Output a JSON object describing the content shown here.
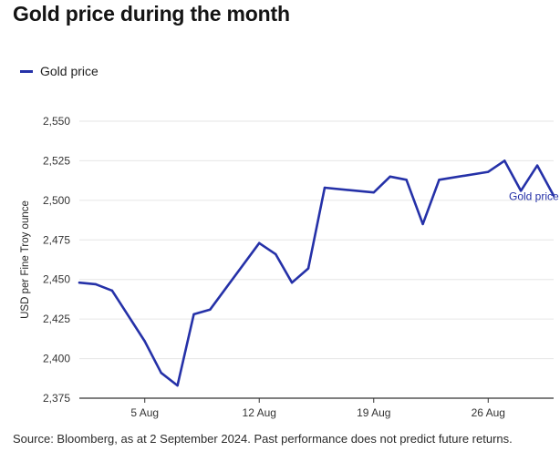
{
  "title": "Gold price during the month",
  "source": "Source: Bloomberg, as at 2 September 2024. Past performance does not predict future returns.",
  "colors": {
    "series": "#2531a8",
    "grid": "#e6e6e6",
    "axis": "#333333"
  },
  "chart_data": {
    "type": "line",
    "title": "Gold price during the month",
    "ylabel": "USD per Fine Troy ounce",
    "xlabel": "",
    "ylim": [
      2375,
      2550
    ],
    "yticks": [
      2375,
      2400,
      2425,
      2450,
      2475,
      2500,
      2525,
      2550
    ],
    "ytick_labels": [
      "2,375",
      "2,400",
      "2,425",
      "2,450",
      "2,475",
      "2,500",
      "2,525",
      "2,550"
    ],
    "xlim": [
      "2024-08-01",
      "2024-08-30"
    ],
    "xticks": [
      "2024-08-05",
      "2024-08-12",
      "2024-08-19",
      "2024-08-26"
    ],
    "xtick_labels": [
      "5 Aug",
      "12 Aug",
      "19 Aug",
      "26 Aug"
    ],
    "grid": true,
    "legend": "top-left",
    "series": [
      {
        "name": "Gold price",
        "end_label": "Gold price",
        "x": [
          "2024-08-01",
          "2024-08-02",
          "2024-08-03",
          "2024-08-05",
          "2024-08-06",
          "2024-08-07",
          "2024-08-08",
          "2024-08-09",
          "2024-08-12",
          "2024-08-13",
          "2024-08-14",
          "2024-08-15",
          "2024-08-16",
          "2024-08-19",
          "2024-08-20",
          "2024-08-21",
          "2024-08-22",
          "2024-08-23",
          "2024-08-26",
          "2024-08-27",
          "2024-08-28",
          "2024-08-29",
          "2024-08-30"
        ],
        "values": [
          2448,
          2447,
          2443,
          2411,
          2391,
          2383,
          2428,
          2431,
          2473,
          2466,
          2448,
          2457,
          2508,
          2505,
          2515,
          2513,
          2485,
          2513,
          2518,
          2525,
          2506,
          2522,
          2503
        ]
      }
    ]
  }
}
